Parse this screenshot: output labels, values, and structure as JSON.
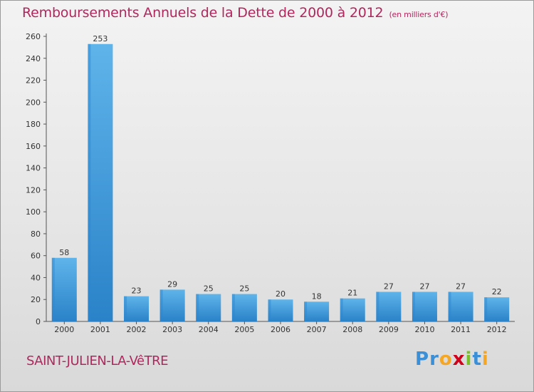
{
  "header": {
    "title": "Remboursements Annuels de la Dette de 2000 à 2012",
    "subtitle": "(en milliers d'€)"
  },
  "footer": {
    "commune": "SAINT-JULIEN-LA-VêTRE",
    "brand": "Proxiti",
    "brand_letters": [
      "P",
      "r",
      "o",
      "x",
      "i",
      "t",
      "i"
    ]
  },
  "colors": {
    "title": "#b0275c",
    "bar_light": "#5fb4ea",
    "bar_dark": "#1f78bf"
  },
  "chart_data": {
    "type": "bar",
    "title": "Remboursements Annuels de la Dette de 2000 à 2012",
    "unit": "(en milliers d'€)",
    "categories": [
      "2000",
      "2001",
      "2002",
      "2003",
      "2004",
      "2005",
      "2006",
      "2007",
      "2008",
      "2009",
      "2010",
      "2011",
      "2012"
    ],
    "values": [
      58,
      253,
      23,
      29,
      25,
      25,
      20,
      18,
      21,
      27,
      27,
      27,
      22
    ],
    "yticks": [
      0,
      20,
      40,
      60,
      80,
      100,
      120,
      140,
      160,
      180,
      200,
      220,
      240,
      260
    ],
    "ylim": [
      0,
      260
    ],
    "xlabel": "",
    "ylabel": "",
    "grid": false
  }
}
